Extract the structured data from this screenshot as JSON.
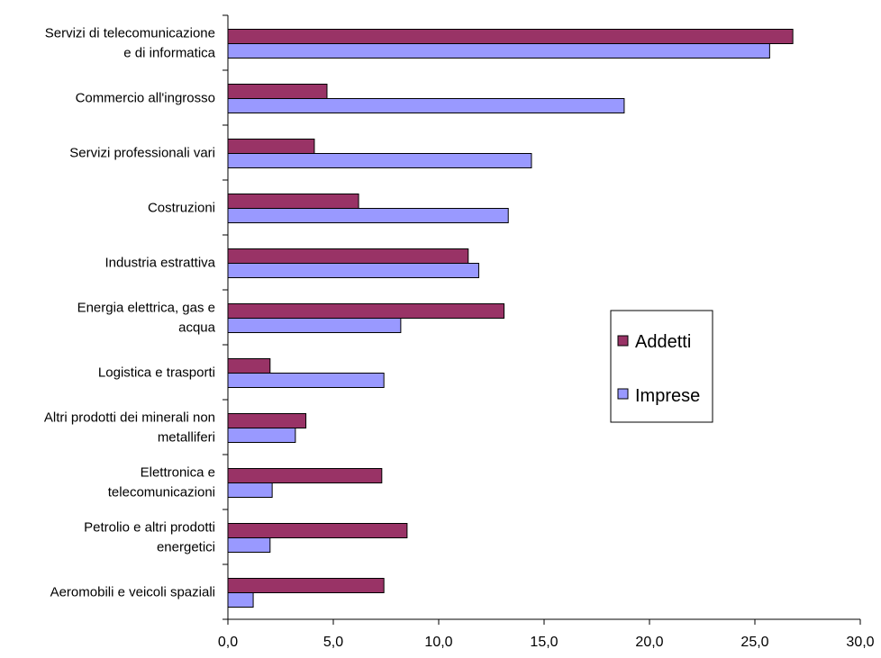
{
  "chart_data": {
    "type": "bar",
    "orientation": "horizontal",
    "categories": [
      [
        "Servizi di telecomunicazione",
        "e di informatica"
      ],
      [
        "Commercio all'ingrosso"
      ],
      [
        "Servizi professionali vari"
      ],
      [
        "Costruzioni"
      ],
      [
        "Industria estrattiva"
      ],
      [
        "Energia elettrica, gas e",
        "acqua"
      ],
      [
        "Logistica e trasporti"
      ],
      [
        "Altri prodotti dei minerali non",
        "metalliferi"
      ],
      [
        "Elettronica e",
        "telecomunicazioni"
      ],
      [
        "Petrolio e altri prodotti",
        "energetici"
      ],
      [
        "Aeromobili e veicoli spaziali"
      ]
    ],
    "series": [
      {
        "name": "Addetti",
        "color": "#993366",
        "values": [
          26.8,
          4.7,
          4.1,
          6.2,
          11.4,
          13.1,
          2.0,
          3.7,
          7.3,
          8.5,
          7.4
        ]
      },
      {
        "name": "Imprese",
        "color": "#9999FF",
        "values": [
          25.7,
          18.8,
          14.4,
          13.3,
          11.9,
          8.2,
          7.4,
          3.2,
          2.1,
          2.0,
          1.2
        ]
      }
    ],
    "xlim": [
      0,
      30
    ],
    "xticks": [
      0,
      5,
      10,
      15,
      20,
      25,
      30
    ],
    "xtick_labels": [
      "0,0",
      "5,0",
      "10,0",
      "15,0",
      "20,0",
      "25,0",
      "30,0"
    ],
    "grid": false,
    "legend_position": "right",
    "title": "",
    "xlabel": "",
    "ylabel": ""
  }
}
